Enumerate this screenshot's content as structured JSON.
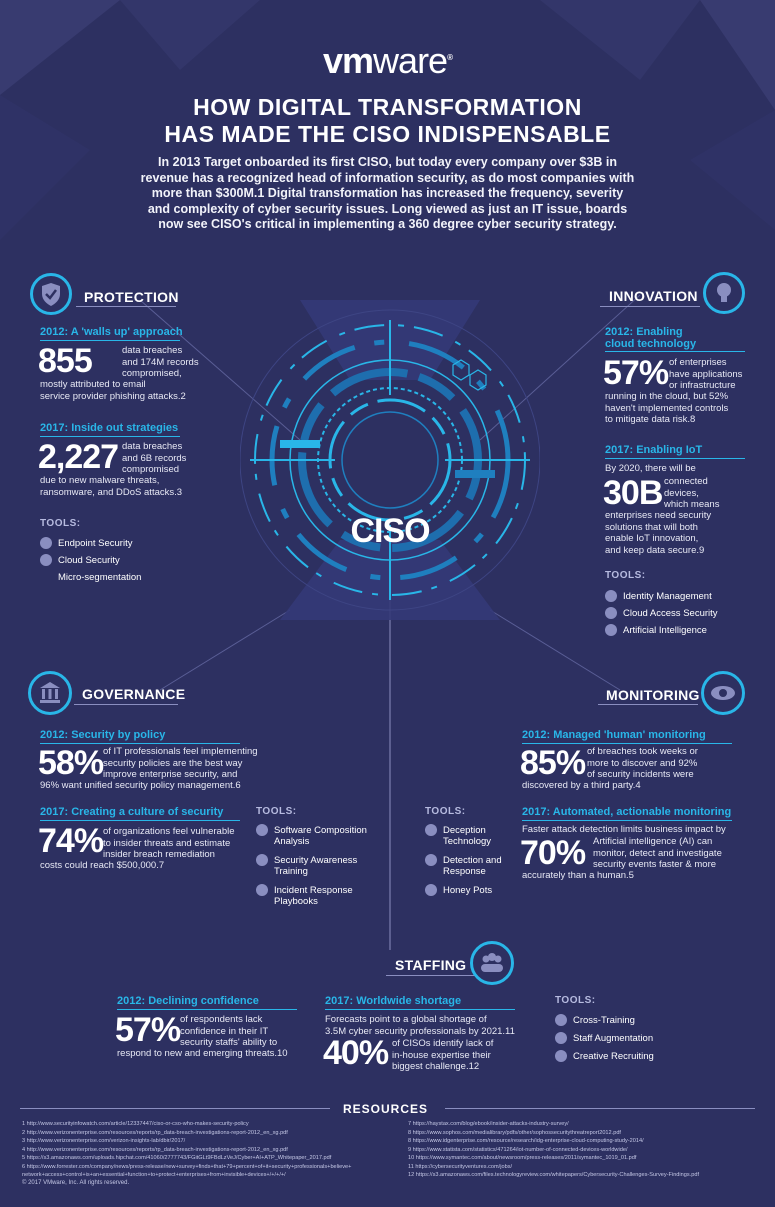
{
  "brand": {
    "logo_vm": "vm",
    "logo_ware": "ware",
    "logo_reg": "®"
  },
  "header": {
    "title_line1": "HOW DIGITAL TRANSFORMATION",
    "title_line2": "HAS MADE THE CISO INDISPENSABLE",
    "intro": "In 2013 Target onboarded its first CISO, but today every company over $3B in revenue has a recognized head of information security, as do most companies with more than $300M.1 Digital transformation has increased the frequency, severity and complexity of cyber security issues. Long viewed as just an IT issue, boards now see CISO's critical in implementing a 360 degree cyber security strategy."
  },
  "center": {
    "label": "CISO"
  },
  "protection": {
    "heading": "PROTECTION",
    "icon": "shield-check-icon",
    "y2012": {
      "label": "2012: A 'walls up' approach",
      "stat": "855",
      "text1": "data breaches",
      "text2": "and 174M records",
      "text3": "compromised,",
      "text4": "mostly attributed to email",
      "text5": "service provider phishing attacks.2"
    },
    "y2017": {
      "label": "2017: Inside out strategies",
      "stat": "2,227",
      "text1": "data breaches",
      "text2": "and 6B records",
      "text3": "compromised",
      "text4": "due to new malware threats,",
      "text5": "ransomware, and DDoS attacks.3"
    },
    "tools_label": "TOOLS:",
    "tools": [
      "Endpoint Security",
      "Cloud Security",
      "Micro-segmentation"
    ]
  },
  "innovation": {
    "heading": "INNOVATION",
    "icon": "lightbulb-icon",
    "y2012": {
      "label1": "2012: Enabling",
      "label2": "cloud technology",
      "stat": "57%",
      "text1": "of enterprises",
      "text2": "have applications",
      "text3": "or infrastructure",
      "text4": "running in the cloud, but 52%",
      "text5": "haven't implemented controls",
      "text6": "to mitigate data risk.8"
    },
    "y2017": {
      "label": "2017: Enabling IoT",
      "pre": "By 2020, there will be",
      "stat": "30B",
      "text1": "connected",
      "text2": "devices,",
      "text3": "which means",
      "text4": "enterprises need security",
      "text5": "solutions that will both",
      "text6": "enable IoT innovation,",
      "text7": "and keep data secure.9"
    },
    "tools_label": "TOOLS:",
    "tools": [
      "Identity Management",
      "Cloud Access Security",
      "Artificial Intelligence"
    ]
  },
  "governance": {
    "heading": "GOVERNANCE",
    "icon": "building-icon",
    "y2012": {
      "label": "2012: Security by policy",
      "stat": "58%",
      "text1": "of IT professionals feel implementing",
      "text2": "security policies are the best way",
      "text3": "improve enterprise security, and",
      "text4": "96% want unified security policy management.6"
    },
    "y2017": {
      "label": "2017: Creating a culture of security",
      "stat": "74%",
      "text1": "of organizations feel vulnerable",
      "text2": "to insider threats and estimate",
      "text3": "insider breach remediation",
      "text4": "costs could reach $500,000.7"
    },
    "tools_label": "TOOLS:",
    "tools": [
      "Software Composition Analysis",
      "Security Awareness Training",
      "Incident Response Playbooks"
    ]
  },
  "monitoring": {
    "heading": "MONITORING",
    "icon": "eye-icon",
    "y2012": {
      "label": "2012: Managed 'human' monitoring",
      "stat": "85%",
      "text1": "of breaches took weeks or",
      "text2": "more to discover and 92%",
      "text3": "of security incidents were",
      "text4": "discovered by a third party.4"
    },
    "y2017": {
      "label": "2017: Automated, actionable monitoring",
      "pre": "Faster attack detection limits business impact by",
      "stat": "70%",
      "text1": "Artificial intelligence (AI) can",
      "text2": "monitor, detect and investigate",
      "text3": "security events faster & more",
      "text4": "accurately than a human.5"
    },
    "tools_label": "TOOLS:",
    "tools": [
      "Deception Technology",
      "Detection and Response",
      "Honey Pots"
    ]
  },
  "staffing": {
    "heading": "STAFFING",
    "icon": "people-icon",
    "y2012": {
      "label": "2012: Declining confidence",
      "stat": "57%",
      "text1": "of respondents lack",
      "text2": "confidence in their IT",
      "text3": "security staffs' ability to",
      "text4": "respond to new and emerging threats.10"
    },
    "y2017": {
      "label": "2017: Worldwide shortage",
      "pre1": "Forecasts point to a global shortage of",
      "pre2": "3.5M cyber security professionals by 2021.11",
      "stat": "40%",
      "text1": "of CISOs identify lack of",
      "text2": "in-house expertise their",
      "text3": "biggest challenge.12"
    },
    "tools_label": "TOOLS:",
    "tools": [
      "Cross-Training",
      "Staff Augmentation",
      "Creative Recruiting"
    ]
  },
  "resources": {
    "heading": "RESOURCES",
    "left": [
      "1 http://www.securityinfowatch.com/article/12337447/ciso-or-cso-who-makes-security-policy",
      "2 http://www.verizonenterprise.com/resources/reports/rp_data-breach-investigations-report-2012_en_xg.pdf",
      "3 http://www.verizonenterprise.com/verizon-insights-lab/dbir/2017/",
      "4 http://www.verizonenterprise.com/resources/reports/rp_data-breach-investigations-report-2012_en_xg.pdf",
      "5 https://s3.amazonaws.com/uploads.hipchat.com/41060/2777743/FGitGLt9FBdLzVeJ/Cyber+AI+ATP_Whitepaper_2017.pdf",
      "6 https://www.forrester.com/company/news/press-release/new+survey+finds+that+79+percent+of+it+security+professionals+believe+",
      "network+access+control+is+an+essential+function+to+protect+enterprises+from+invisible+devices+/+/+/+/",
      "© 2017 VMware, Inc. All rights reserved."
    ],
    "right": [
      "7 https://haystax.com/blog/ebook/insider-attacks-industry-survey/",
      "8 https://www.sophos.com/medialibrary/pdfs/other/sophossecuritythreatreport2012.pdf",
      "8 https://www.idgenterprise.com/resource/research/idg-enterprise-cloud-computing-study-2014/",
      "9 https://www.statista.com/statistics/471264/iot-number-of-connected-devices-worldwide/",
      "10 https://www.symantec.com/about/newsroom/press-releases/2011/symantec_1019_01.pdf",
      "11 https://cybersecurityventures.com/jobs/",
      "12 https://s3.amazonaws.com/files.technologyreview.com/whitepapers/Cybersecurity-Challenges-Survey-Findings.pdf"
    ]
  },
  "colors": {
    "background": "#2d3061",
    "accent": "#29b6e8",
    "text": "#ffffff",
    "muted": "#8a8ec0"
  }
}
